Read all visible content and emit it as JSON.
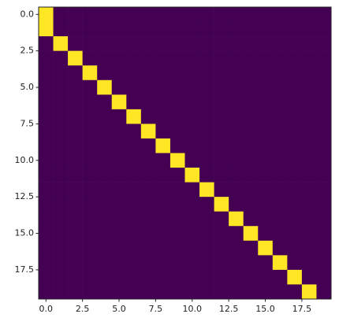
{
  "chart_data": {
    "type": "heatmap",
    "z": [
      [
        1,
        0,
        0,
        0,
        0,
        0,
        0,
        0,
        0,
        0,
        0,
        0,
        0,
        0,
        0,
        0,
        0,
        0,
        0,
        0
      ],
      [
        1,
        0,
        0,
        0,
        0,
        0,
        0,
        0,
        0,
        0,
        0,
        0,
        0,
        0,
        0,
        0,
        0,
        0,
        0,
        0
      ],
      [
        0,
        1,
        0,
        0,
        0,
        0,
        0,
        0,
        0,
        0,
        0,
        0,
        0,
        0,
        0,
        0,
        0,
        0,
        0,
        0
      ],
      [
        0,
        0,
        1,
        0,
        0,
        0,
        0,
        0,
        0,
        0,
        0,
        0,
        0,
        0,
        0,
        0,
        0,
        0,
        0,
        0
      ],
      [
        0,
        0,
        0,
        1,
        0,
        0,
        0,
        0,
        0,
        0,
        0,
        0,
        0,
        0,
        0,
        0,
        0,
        0,
        0,
        0
      ],
      [
        0,
        0,
        0,
        0,
        1,
        0,
        0,
        0,
        0,
        0,
        0,
        0,
        0,
        0,
        0,
        0,
        0,
        0,
        0,
        0
      ],
      [
        0,
        0,
        0,
        0,
        0,
        1,
        0,
        0,
        0,
        0,
        0,
        0,
        0,
        0,
        0,
        0,
        0,
        0,
        0,
        0
      ],
      [
        0,
        0,
        0,
        0,
        0,
        0,
        1,
        0,
        0,
        0,
        0,
        0,
        0,
        0,
        0,
        0,
        0,
        0,
        0,
        0
      ],
      [
        0,
        0,
        0,
        0,
        0,
        0,
        0,
        1,
        0,
        0,
        0,
        0,
        0,
        0,
        0,
        0,
        0,
        0,
        0,
        0
      ],
      [
        0,
        0,
        0,
        0,
        0,
        0,
        0,
        0,
        1,
        0,
        0,
        0,
        0,
        0,
        0,
        0,
        0,
        0,
        0,
        0
      ],
      [
        0,
        0,
        0,
        0,
        0,
        0,
        0,
        0,
        0,
        1,
        0,
        0,
        0,
        0,
        0,
        0,
        0,
        0,
        0,
        0
      ],
      [
        0,
        0,
        0,
        0,
        0,
        0,
        0,
        0,
        0,
        0,
        1,
        0,
        0,
        0,
        0,
        0,
        0,
        0,
        0,
        0
      ],
      [
        0,
        0,
        0,
        0,
        0,
        0,
        0,
        0,
        0,
        0,
        0,
        1,
        0,
        0,
        0,
        0,
        0,
        0,
        0,
        0
      ],
      [
        0,
        0,
        0,
        0,
        0,
        0,
        0,
        0,
        0,
        0,
        0,
        0,
        1,
        0,
        0,
        0,
        0,
        0,
        0,
        0
      ],
      [
        0,
        0,
        0,
        0,
        0,
        0,
        0,
        0,
        0,
        0,
        0,
        0,
        0,
        1,
        0,
        0,
        0,
        0,
        0,
        0
      ],
      [
        0,
        0,
        0,
        0,
        0,
        0,
        0,
        0,
        0,
        0,
        0,
        0,
        0,
        0,
        1,
        0,
        0,
        0,
        0,
        0
      ],
      [
        0,
        0,
        0,
        0,
        0,
        0,
        0,
        0,
        0,
        0,
        0,
        0,
        0,
        0,
        0,
        1,
        0,
        0,
        0,
        0
      ],
      [
        0,
        0,
        0,
        0,
        0,
        0,
        0,
        0,
        0,
        0,
        0,
        0,
        0,
        0,
        0,
        0,
        1,
        0,
        0,
        0
      ],
      [
        0,
        0,
        0,
        0,
        0,
        0,
        0,
        0,
        0,
        0,
        0,
        0,
        0,
        0,
        0,
        0,
        0,
        1,
        0,
        0
      ],
      [
        0,
        0,
        0,
        0,
        0,
        0,
        0,
        0,
        0,
        0,
        0,
        0,
        0,
        0,
        0,
        0,
        0,
        0,
        1,
        0
      ]
    ],
    "colormap": [
      "#440154",
      "#fde725"
    ],
    "xlim": [
      -0.5,
      19.5
    ],
    "ylim": [
      19.5,
      -0.5
    ],
    "xticks": [
      {
        "value": 0,
        "label": "0.0"
      },
      2.5,
      {
        "value": 5,
        "label": "5.0"
      },
      7.5,
      {
        "value": 10,
        "label": "10.0"
      },
      12.5,
      {
        "value": 15,
        "label": "15.0"
      },
      17.5
    ],
    "yticks": [
      {
        "value": 0,
        "label": "0.0"
      },
      2.5,
      {
        "value": 5,
        "label": "5.0"
      },
      7.5,
      {
        "value": 10,
        "label": "10.0"
      },
      12.5,
      {
        "value": 15,
        "label": "15.0"
      },
      17.5
    ]
  }
}
